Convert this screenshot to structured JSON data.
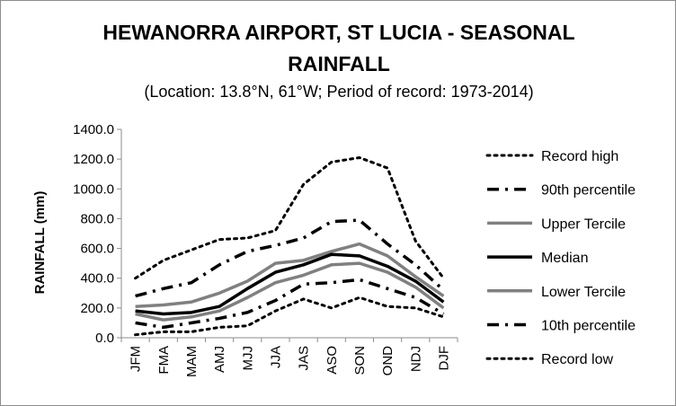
{
  "title_line1": "HEWANORRA AIRPORT, ST LUCIA - SEASONAL",
  "title_line2": "RAINFALL",
  "subtitle": "(Location: 13.8°N, 61°W; Period of record: 1973-2014)",
  "chart_data": {
    "type": "line",
    "title": "HEWANORRA AIRPORT, ST LUCIA - SEASONAL RAINFALL",
    "subtitle": "(Location: 13.8°N, 61°W; Period of record: 1973-2014)",
    "xlabel": "",
    "ylabel": "RAINFALL (mm)",
    "ylim": [
      0,
      1400
    ],
    "yticks": [
      "0.0",
      "200.0",
      "400.0",
      "600.0",
      "800.0",
      "1000.0",
      "1200.0",
      "1400.0"
    ],
    "grid": false,
    "legend_position": "right",
    "categories": [
      "JFM",
      "FMA",
      "MAM",
      "AMJ",
      "MJJ",
      "JJA",
      "JAS",
      "ASO",
      "SON",
      "OND",
      "NDJ",
      "DJF"
    ],
    "series": [
      {
        "name": "Record high",
        "color": "#000000",
        "style": "dotted",
        "values": [
          400,
          520,
          590,
          660,
          670,
          720,
          1030,
          1180,
          1210,
          1140,
          650,
          400
        ]
      },
      {
        "name": "90th percentile",
        "color": "#000000",
        "style": "dashdot",
        "values": [
          280,
          330,
          370,
          490,
          580,
          620,
          670,
          780,
          790,
          630,
          490,
          320
        ]
      },
      {
        "name": "Upper Tercile",
        "color": "#808080",
        "style": "solid",
        "values": [
          210,
          220,
          240,
          300,
          380,
          500,
          520,
          580,
          630,
          550,
          410,
          280
        ]
      },
      {
        "name": "Median",
        "color": "#000000",
        "style": "solid",
        "values": [
          180,
          160,
          170,
          210,
          330,
          440,
          490,
          560,
          550,
          480,
          380,
          240
        ]
      },
      {
        "name": "Lower Tercile",
        "color": "#808080",
        "style": "solid",
        "values": [
          160,
          120,
          140,
          180,
          270,
          370,
          420,
          490,
          500,
          440,
          340,
          200
        ]
      },
      {
        "name": "10th percentile",
        "color": "#000000",
        "style": "dashdot",
        "values": [
          100,
          70,
          100,
          130,
          170,
          250,
          360,
          370,
          390,
          330,
          270,
          160
        ]
      },
      {
        "name": "Record low",
        "color": "#000000",
        "style": "dotted",
        "values": [
          20,
          40,
          40,
          70,
          80,
          180,
          260,
          200,
          270,
          210,
          200,
          140
        ]
      }
    ]
  }
}
